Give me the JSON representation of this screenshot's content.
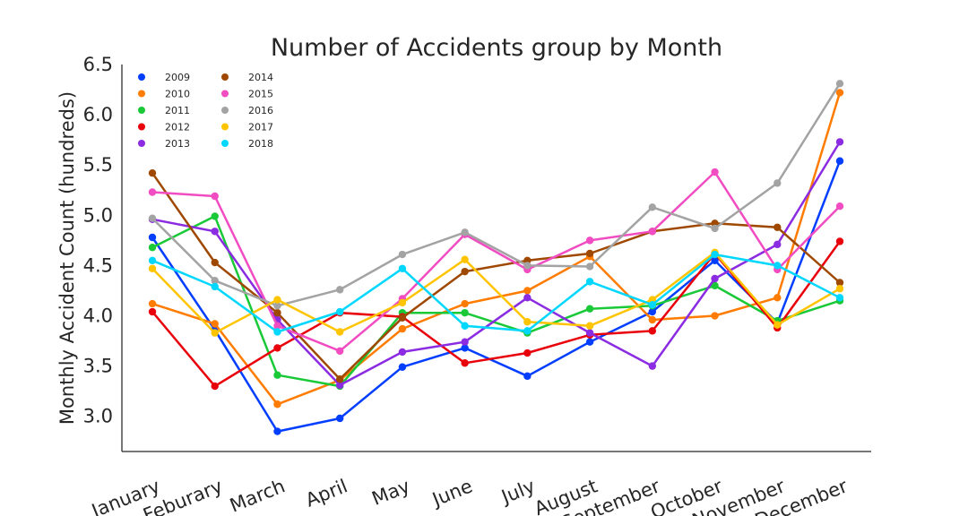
{
  "chart_data": {
    "type": "line",
    "title": "Number of Accidents group by Month",
    "xlabel": "",
    "ylabel": "Monthly Accident Count (hundreds)",
    "ylim": [
      2.65,
      6.5
    ],
    "yticks": [
      "3.0",
      "3.5",
      "4.0",
      "4.5",
      "5.0",
      "5.5",
      "6.0",
      "6.5"
    ],
    "categories": [
      "January",
      "Feburary",
      "March",
      "April",
      "May",
      "June",
      "July",
      "August",
      "September",
      "October",
      "November",
      "December"
    ],
    "grid": false,
    "legend_placement": "top-left",
    "series": [
      {
        "name": "2009",
        "color": "#023eff",
        "values": [
          4.78,
          3.86,
          2.85,
          2.98,
          3.49,
          3.68,
          3.4,
          3.74,
          4.04,
          4.55,
          3.93,
          5.54
        ]
      },
      {
        "name": "2010",
        "color": "#ff7c00",
        "values": [
          4.12,
          3.92,
          3.12,
          3.36,
          3.87,
          4.12,
          4.25,
          4.59,
          3.96,
          4.0,
          4.18,
          6.22
        ]
      },
      {
        "name": "2011",
        "color": "#1ac938",
        "values": [
          4.68,
          4.99,
          3.41,
          3.3,
          4.03,
          4.03,
          3.83,
          4.07,
          4.1,
          4.3,
          3.95,
          4.15
        ]
      },
      {
        "name": "2012",
        "color": "#e8000b",
        "values": [
          4.04,
          3.3,
          3.68,
          4.03,
          3.99,
          3.53,
          3.63,
          3.81,
          3.85,
          4.62,
          3.88,
          4.74
        ]
      },
      {
        "name": "2013",
        "color": "#8b2be2",
        "values": [
          4.96,
          4.84,
          3.96,
          3.31,
          3.64,
          3.74,
          4.18,
          3.83,
          3.5,
          4.37,
          4.71,
          5.73
        ]
      },
      {
        "name": "2014",
        "color": "#9f4800",
        "values": [
          5.42,
          4.53,
          4.03,
          3.37,
          3.98,
          4.44,
          4.55,
          4.62,
          4.84,
          4.92,
          4.88,
          4.33
        ]
      },
      {
        "name": "2015",
        "color": "#f14cc1",
        "values": [
          5.23,
          5.19,
          3.9,
          3.65,
          4.17,
          4.81,
          4.46,
          4.75,
          4.84,
          5.43,
          4.46,
          5.09
        ]
      },
      {
        "name": "2016",
        "color": "#a3a3a3",
        "values": [
          4.97,
          4.35,
          4.1,
          4.26,
          4.61,
          4.83,
          4.5,
          4.49,
          5.08,
          4.87,
          5.32,
          6.31
        ]
      },
      {
        "name": "2017",
        "color": "#ffc400",
        "values": [
          4.47,
          3.83,
          4.16,
          3.84,
          4.13,
          4.56,
          3.94,
          3.9,
          4.16,
          4.63,
          3.91,
          4.27
        ]
      },
      {
        "name": "2018",
        "color": "#00d7ff",
        "values": [
          4.55,
          4.29,
          3.84,
          4.04,
          4.47,
          3.9,
          3.85,
          4.34,
          4.11,
          4.61,
          4.5,
          4.18
        ]
      }
    ]
  }
}
